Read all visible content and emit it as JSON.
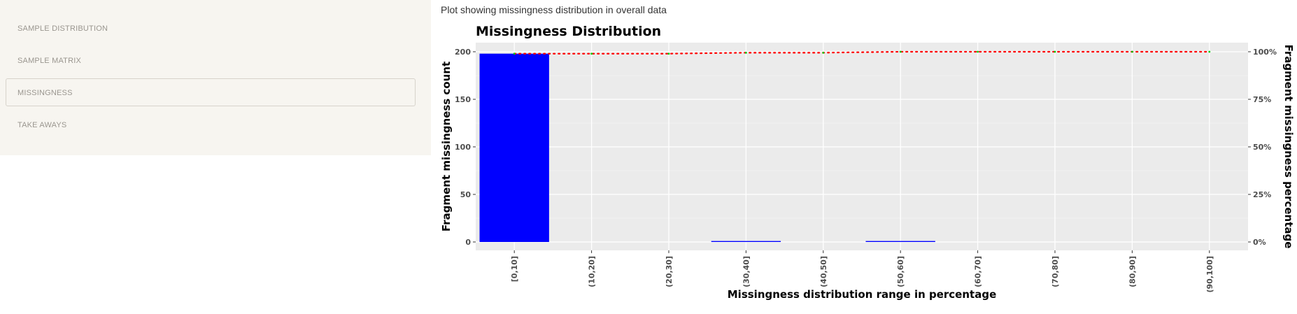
{
  "sidebar": {
    "items": [
      {
        "label": "SAMPLE DISTRIBUTION",
        "active": false
      },
      {
        "label": "SAMPLE MATRIX",
        "active": false
      },
      {
        "label": "MISSINGNESS",
        "active": true
      },
      {
        "label": "TAKE AWAYS",
        "active": false
      }
    ]
  },
  "main": {
    "plot_description": "Plot showing missingness distribution in overall data"
  },
  "colors": {
    "panel_bg": "#EBEBEB",
    "bar": "#0000FF",
    "line": "#FF0000",
    "point": "#00CC00"
  },
  "chart_data": {
    "type": "bar",
    "title": "Missingness Distribution",
    "xlabel": "Missingness distribution range in percentage",
    "ylabel": "Fragment missingness count",
    "y2label": "Fragment missingness percentage",
    "categories": [
      "[0,10]",
      "(10,20]",
      "(20,30]",
      "(30,40]",
      "(40,50]",
      "(50,60]",
      "(60,70]",
      "(70,80]",
      "(80,90]",
      "(90,100]"
    ],
    "values": [
      198,
      0,
      0,
      1,
      0,
      1,
      0,
      0,
      0,
      0
    ],
    "ylim": [
      0,
      200
    ],
    "yticks": [
      0,
      50,
      100,
      150,
      200
    ],
    "cumulative_percent": [
      99,
      99,
      99,
      99.5,
      99.5,
      100,
      100,
      100,
      100,
      100
    ],
    "y2lim": [
      0,
      100
    ],
    "y2ticks": [
      "0%",
      "25%",
      "50%",
      "75%",
      "100%"
    ],
    "grid": true,
    "legend": "none"
  }
}
